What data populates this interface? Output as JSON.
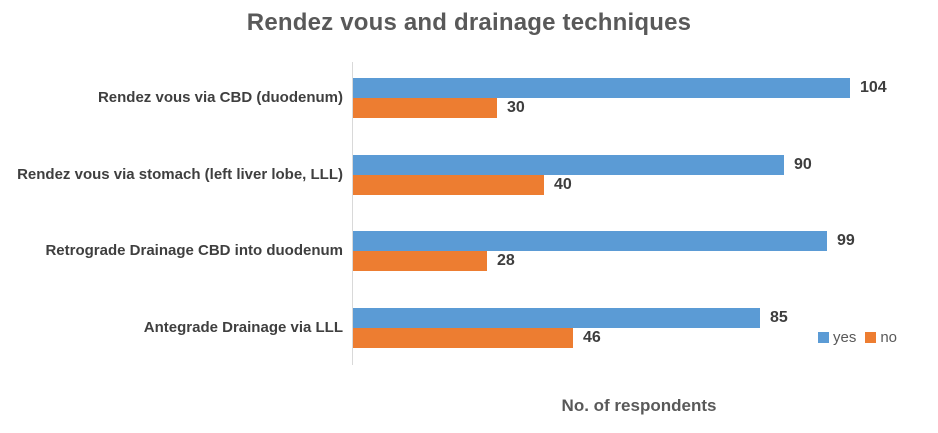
{
  "chart_data": {
    "type": "bar",
    "orientation": "horizontal",
    "title": "Rendez vous and drainage techniques",
    "categories": [
      "Rendez vous via CBD (duodenum)",
      "Rendez vous via stomach (left liver lobe, LLL)",
      "Retrograde Drainage CBD into duodenum",
      "Antegrade Drainage via LLL"
    ],
    "series": [
      {
        "name": "yes",
        "color": "#5B9BD5",
        "values": [
          104,
          90,
          99,
          85
        ]
      },
      {
        "name": "no",
        "color": "#ED7D31",
        "values": [
          30,
          40,
          28,
          46
        ]
      }
    ],
    "xlabel": "No. of respondents",
    "xlim": [
      0,
      120
    ],
    "grid": false,
    "data_labels": true,
    "legend_position": "bottom-right",
    "axis_line_color": "#D9D9D9"
  }
}
